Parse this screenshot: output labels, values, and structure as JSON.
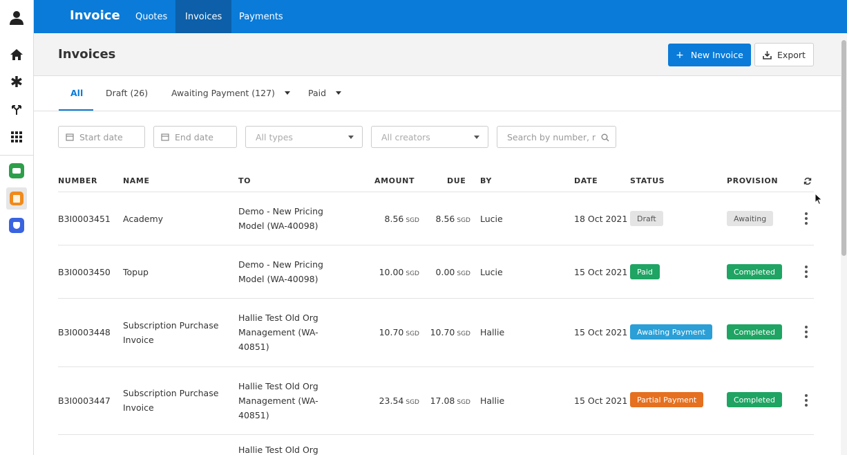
{
  "app": {
    "title": "Invoice",
    "nav": [
      "Quotes",
      "Invoices",
      "Payments"
    ],
    "active_nav": "Invoices"
  },
  "rail_icons": [
    "user-icon",
    "home-icon",
    "asterisk-icon",
    "fork-icon",
    "grid-icon",
    "green-app-icon",
    "orange-app-icon",
    "blue-app-icon"
  ],
  "header": {
    "title": "Invoices",
    "new_button": "New Invoice",
    "new_button_icon": "+",
    "export_button": "Export"
  },
  "tabs": [
    {
      "label": "All",
      "active": true
    },
    {
      "label": "Draft (26)",
      "active": false
    },
    {
      "label": "Awaiting Payment (127)",
      "active": false,
      "dropdown": true
    },
    {
      "label": "Paid",
      "active": false,
      "dropdown": true
    }
  ],
  "filters": {
    "start_date": "Start date",
    "end_date": "End date",
    "types": "All types",
    "creators": "All creators",
    "search_placeholder": "Search by number, n"
  },
  "table": {
    "columns": [
      "NUMBER",
      "NAME",
      "TO",
      "AMOUNT",
      "DUE",
      "BY",
      "DATE",
      "STATUS",
      "PROVISION"
    ],
    "currency": "SGD",
    "rows": [
      {
        "number": "B3I0003451",
        "name": [
          "Academy"
        ],
        "to": [
          "Demo - New Pricing",
          "Model (WA-40098)"
        ],
        "amount": "8.56",
        "due": "8.56",
        "by": "Lucie",
        "date": "18 Oct 2021",
        "status": "Draft",
        "provision": "Awaiting"
      },
      {
        "number": "B3I0003450",
        "name": [
          "Topup"
        ],
        "to": [
          "Demo - New Pricing",
          "Model (WA-40098)"
        ],
        "amount": "10.00",
        "due": "0.00",
        "by": "Lucie",
        "date": "15 Oct 2021",
        "status": "Paid",
        "provision": "Completed"
      },
      {
        "number": "B3I0003448",
        "name": [
          "Subscription Purchase",
          "Invoice"
        ],
        "to": [
          "Hallie Test Old Org",
          "Management (WA-",
          "40851)"
        ],
        "amount": "10.70",
        "due": "10.70",
        "by": "Hallie",
        "date": "15 Oct 2021",
        "status": "Awaiting Payment",
        "provision": "Completed"
      },
      {
        "number": "B3I0003447",
        "name": [
          "Subscription Purchase",
          "Invoice"
        ],
        "to": [
          "Hallie Test Old Org",
          "Management (WA-",
          "40851)"
        ],
        "amount": "23.54",
        "due": "17.08",
        "by": "Hallie",
        "date": "15 Oct 2021",
        "status": "Partial Payment",
        "provision": "Completed"
      },
      {
        "to": [
          "Hallie Test Old Org"
        ]
      }
    ]
  },
  "colors": {
    "brand": "#0a7bd8",
    "nav_active": "#0c5fa8",
    "status_draft": "#e4e4e4",
    "status_paid": "#1fa463",
    "status_awaiting": "#2b9fd6",
    "status_partial": "#e5701f",
    "provision_completed": "#1fa463"
  }
}
